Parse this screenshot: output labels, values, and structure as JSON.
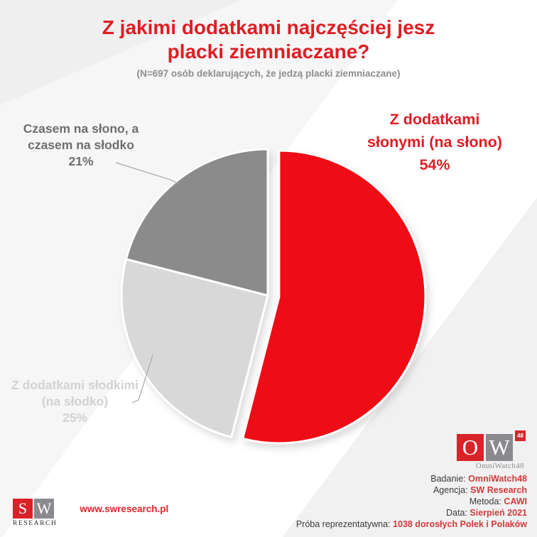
{
  "header": {
    "title_line1": "Z jakimi dodatkami najczęściej jesz",
    "title_line2": "placki ziemniaczane?",
    "subtitle": "(N=697 osób deklarujących, że jedzą placki ziemniaczane)",
    "title_color": "#e01d23"
  },
  "chart_data": {
    "type": "pie",
    "title": "Z jakimi dodatkami najczęściej jesz placki ziemniaczane?",
    "subtitle": "(N=697 osób deklarujących, że jedzą placki ziemniaczane)",
    "sample_note": "N=697",
    "start_angle_deg": 0,
    "direction": "clockwise",
    "slices": [
      {
        "label_line1": "Z dodatkami",
        "label_line2": "słonymi (na słono)",
        "pct_label": "54%",
        "value": 54,
        "color": "#ee1112",
        "label_color": "#de1d24",
        "exploded": true
      },
      {
        "label_line1": "Z dodatkami słodkimi",
        "label_line2": "(na słodko)",
        "pct_label": "25%",
        "value": 25,
        "color": "#d8d8d9",
        "label_color": "#d2d2d3",
        "exploded": false
      },
      {
        "label_line1": "Czasem na słono, a",
        "label_line2": "czasem na słodko",
        "pct_label": "21%",
        "value": 21,
        "color": "#8b8b8b",
        "label_color": "#6e6e6e",
        "exploded": false
      }
    ]
  },
  "footer": {
    "sw_logo": {
      "s": "S",
      "w": "W",
      "caption": "RESEARCH"
    },
    "website": "www.swresearch.pl",
    "ow_logo": {
      "o": "O",
      "w": "W",
      "badge": "48",
      "caption": "OmniWatch48"
    },
    "meta": [
      {
        "label": "Badanie:",
        "value": "OmniWatch48"
      },
      {
        "label": "Agencja:",
        "value": "SW Research"
      },
      {
        "label": "Metoda:",
        "value": "CAWI"
      },
      {
        "label": "Data:",
        "value": "Sierpień 2021"
      },
      {
        "label": "Próba reprezentatywna:",
        "value": "1038 dorosłych Polek i Polaków"
      }
    ]
  },
  "colors": {
    "accent_red": "#e01d23",
    "pie_red": "#ee1112",
    "pie_light_gray": "#d8d8d9",
    "pie_dark_gray": "#8b8b8b",
    "background_wedge": "#f1f1f2"
  }
}
